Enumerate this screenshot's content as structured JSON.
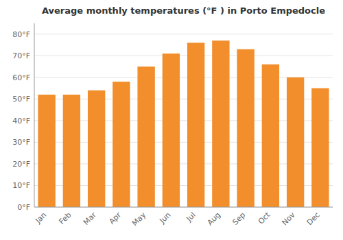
{
  "chart_data": {
    "type": "bar",
    "title": "Average monthly temperatures (°F ) in Porto Empedocle",
    "categories": [
      "Jan",
      "Feb",
      "Mar",
      "Apr",
      "May",
      "Jun",
      "Jul",
      "Aug",
      "Sep",
      "Oct",
      "Nov",
      "Dec"
    ],
    "values": [
      52,
      52,
      54,
      58,
      65,
      71,
      76,
      77,
      73,
      66,
      60,
      55
    ],
    "ylim": [
      0,
      85
    ],
    "yticks": [
      {
        "value": 0,
        "label": "0°F"
      },
      {
        "value": 10,
        "label": "10°F"
      },
      {
        "value": 20,
        "label": "20°F"
      },
      {
        "value": 30,
        "label": "30°F"
      },
      {
        "value": 40,
        "label": "40°F"
      },
      {
        "value": 50,
        "label": "50°F"
      },
      {
        "value": 60,
        "label": "60°F"
      },
      {
        "value": 70,
        "label": "70°F"
      },
      {
        "value": 80,
        "label": "80°F"
      }
    ],
    "grid": true
  }
}
